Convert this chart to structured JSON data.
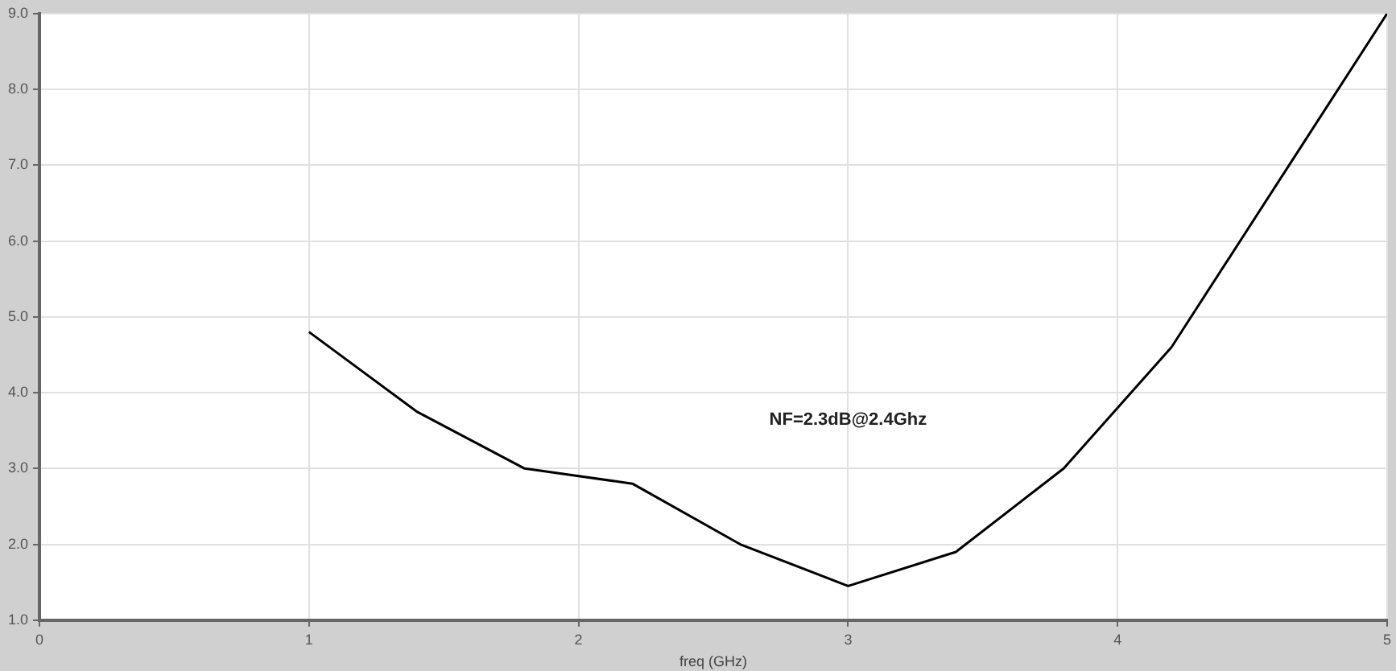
{
  "chart_data": {
    "type": "line",
    "xlabel": "freq (GHz)",
    "annotations": [
      "NF=2.3dB@2.4Ghz"
    ],
    "x": [
      1,
      1.4,
      1.8,
      2.2,
      2.6,
      3.0,
      3.4,
      3.8,
      4.2,
      4.6,
      5.0
    ],
    "series": [
      {
        "color": "#000000",
        "values": [
          4.8,
          3.75,
          3.0,
          2.8,
          2.0,
          1.45,
          1.9,
          3.0,
          4.6,
          6.8,
          9.0
        ]
      }
    ],
    "xlim": [
      0,
      5
    ],
    "xticks": [
      0,
      1,
      2,
      3,
      4,
      5
    ],
    "ylim": [
      1,
      9
    ],
    "yticks": [
      {
        "value": 1,
        "label": "1.0"
      },
      {
        "value": 2,
        "label": "2.0"
      },
      {
        "value": 3,
        "label": "3.0"
      },
      {
        "value": 4,
        "label": "4.0"
      },
      {
        "value": 5,
        "label": "5.0"
      },
      {
        "value": 6,
        "label": "6.0"
      },
      {
        "value": 7,
        "label": "7.0"
      },
      {
        "value": 8,
        "label": "8.0"
      },
      {
        "value": 9,
        "label": "9.0"
      }
    ],
    "grid": true,
    "legend": false,
    "marker": "none",
    "line_style": "solid"
  }
}
